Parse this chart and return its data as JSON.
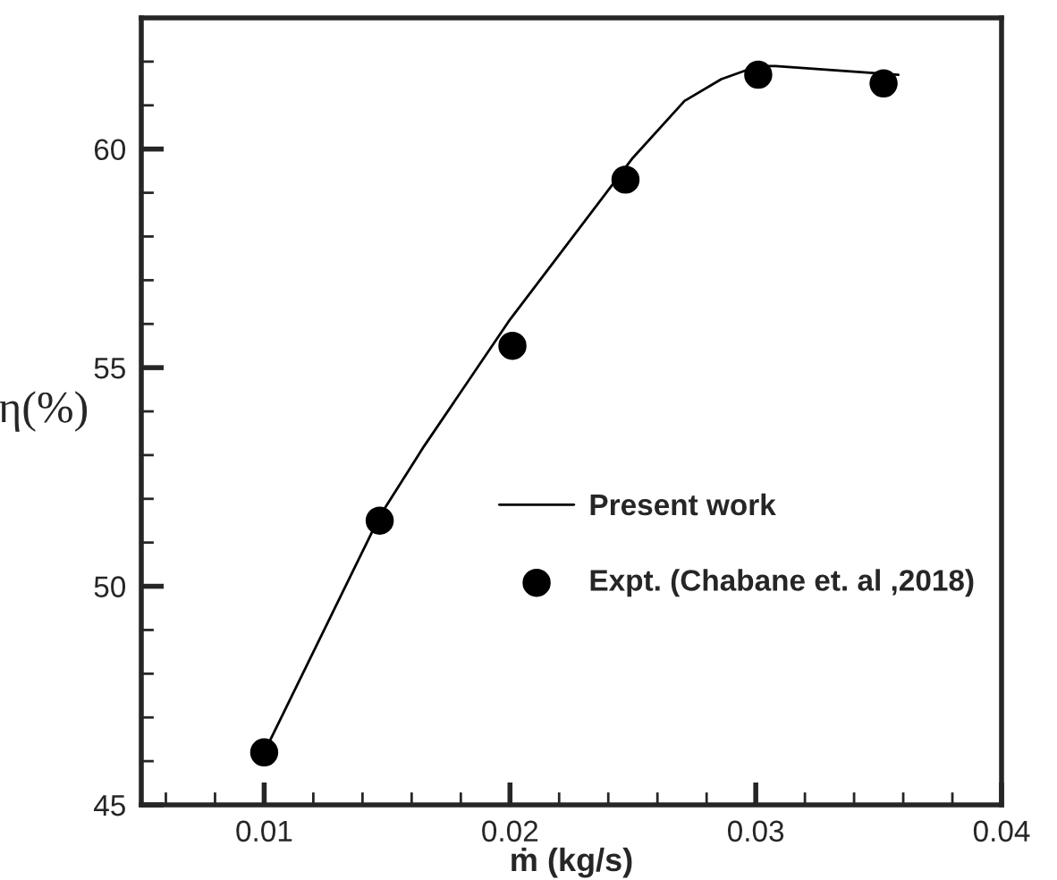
{
  "chart_data": {
    "type": "line",
    "xlabel": "ṁ (kg/s)",
    "ylabel": "η(%)",
    "xlim": [
      0.005,
      0.04
    ],
    "xticks": [
      0.01,
      0.02,
      0.03,
      0.04
    ],
    "ylim": [
      45,
      63
    ],
    "yticks": [
      45,
      50,
      55,
      60
    ],
    "grid": false,
    "legend": "right",
    "series": [
      {
        "name": "Present work",
        "color": "#000000",
        "marker": "none",
        "x": [
          0.01,
          0.0147,
          0.0165,
          0.02,
          0.025,
          0.0271,
          0.0286,
          0.0301,
          0.0308,
          0.0358
        ],
        "values": [
          46.2,
          51.6,
          53.2,
          56.1,
          59.8,
          61.1,
          61.6,
          61.9,
          61.9,
          61.7
        ]
      },
      {
        "name": "Expt. (Chabane et. al ,2018)",
        "type": "scatter",
        "color": "#000000",
        "marker": "circle",
        "x": [
          0.01,
          0.0147,
          0.0201,
          0.0247,
          0.0301,
          0.0352
        ],
        "values": [
          46.2,
          51.5,
          55.5,
          59.3,
          61.7,
          61.5
        ]
      }
    ]
  }
}
